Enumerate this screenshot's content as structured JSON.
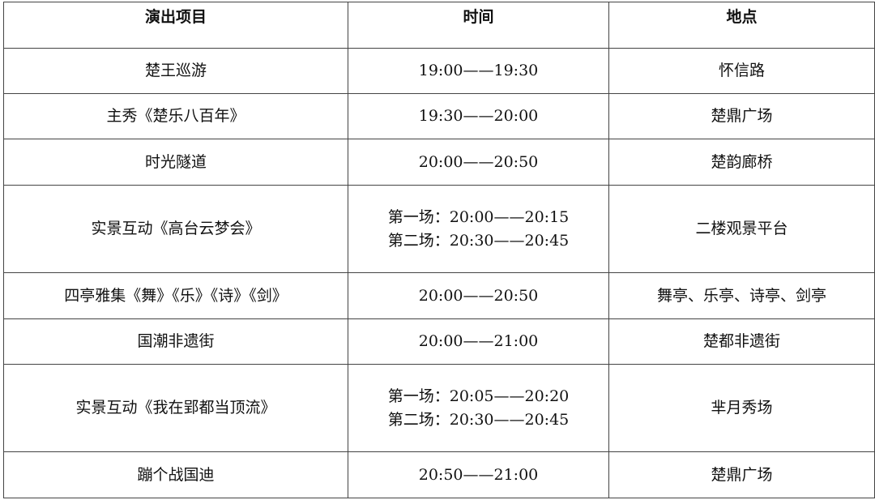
{
  "headers": [
    "演出项目",
    "时间",
    "地点"
  ],
  "rows": [
    {
      "item": "楚王巡游",
      "times": [
        "19:00——19:30"
      ],
      "place": "怀信路"
    },
    {
      "item": "主秀《楚乐八百年》",
      "times": [
        "19:30——20:00"
      ],
      "place": "楚鼎广场"
    },
    {
      "item": "时光隧道",
      "times": [
        "20:00——20:50"
      ],
      "place": "楚韵廊桥"
    },
    {
      "item": "实景互动《高台云梦会》",
      "times": [
        "第一场：20:00——20:15",
        "第二场：20:30——20:45"
      ],
      "place": "二楼观景平台"
    },
    {
      "item": "四亭雅集《舞》《乐》《诗》《剑》",
      "times": [
        "20:00——20:50"
      ],
      "place": "舞亭、乐亭、诗亭、剑亭"
    },
    {
      "item": "国潮非遗街",
      "times": [
        "20:00——21:00"
      ],
      "place": "楚都非遗街"
    },
    {
      "item": "实景互动《我在郢都当顶流》",
      "times": [
        "第一场：20:05——20:20",
        "第二场：20:30——20:45"
      ],
      "place": "芈月秀场"
    },
    {
      "item": "蹦个战国迪",
      "times": [
        "20:50——21:00"
      ],
      "place": "楚鼎广场"
    }
  ]
}
